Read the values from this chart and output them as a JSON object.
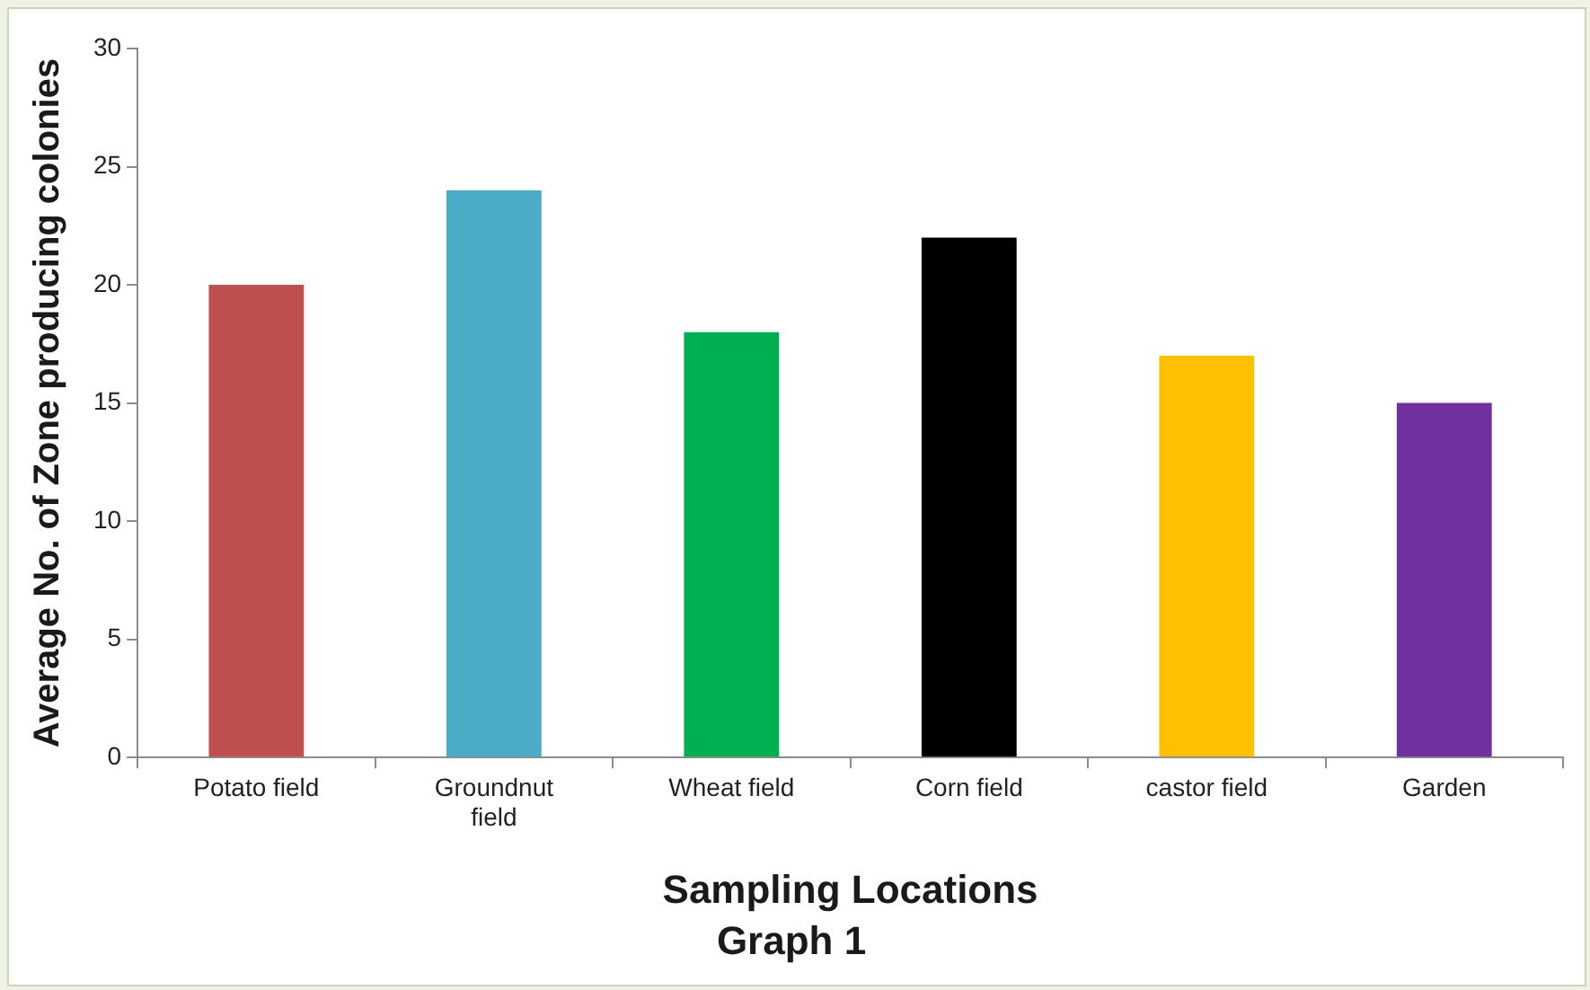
{
  "chart_data": {
    "type": "bar",
    "xlabel": "Sampling Locations",
    "ylabel": "Average No. of Zone producing colonies",
    "annotations": [
      "Graph 1"
    ],
    "categories": [
      "Potato field",
      "Groundnut field",
      "Wheat field",
      "Corn field",
      "castor field",
      "Garden"
    ],
    "values": [
      20,
      24,
      18,
      22,
      17,
      15
    ],
    "colors": [
      "#c0504d",
      "#4bacc6",
      "#00b050",
      "#000000",
      "#ffc000",
      "#7030a0"
    ],
    "ylim": [
      0,
      30
    ],
    "yticks": [
      0,
      5,
      10,
      15,
      20,
      25,
      30
    ],
    "grid": false,
    "legend": false
  }
}
